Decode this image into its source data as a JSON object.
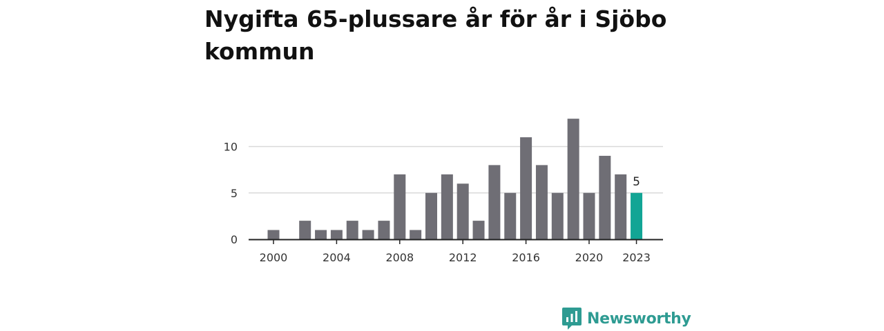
{
  "chart_data": {
    "type": "bar",
    "title": "Nygifta 65-plussare år för år i Sjöbo kommun",
    "xlabel": "",
    "ylabel": "",
    "categories": [
      "2000",
      "2001",
      "2002",
      "2003",
      "2004",
      "2005",
      "2006",
      "2007",
      "2008",
      "2009",
      "2010",
      "2011",
      "2012",
      "2013",
      "2014",
      "2015",
      "2016",
      "2017",
      "2018",
      "2019",
      "2020",
      "2021",
      "2022",
      "2023"
    ],
    "values": [
      1,
      0,
      2,
      1,
      1,
      2,
      1,
      2,
      7,
      1,
      5,
      7,
      6,
      2,
      8,
      5,
      11,
      8,
      5,
      13,
      5,
      9,
      7,
      5
    ],
    "ylim": [
      0,
      14
    ],
    "yticks": [
      0,
      5,
      10
    ],
    "xticks": [
      "2000",
      "2004",
      "2008",
      "2012",
      "2016",
      "2020",
      "2023"
    ],
    "highlight_index": 23,
    "highlight_label": "5",
    "grid": true,
    "colors": {
      "bar": "#6f6e75",
      "highlight": "#12a595",
      "grid": "#d9d9d9",
      "axis": "#222222"
    }
  },
  "brand": {
    "name": "Newsworthy",
    "color": "#2e9b92"
  }
}
